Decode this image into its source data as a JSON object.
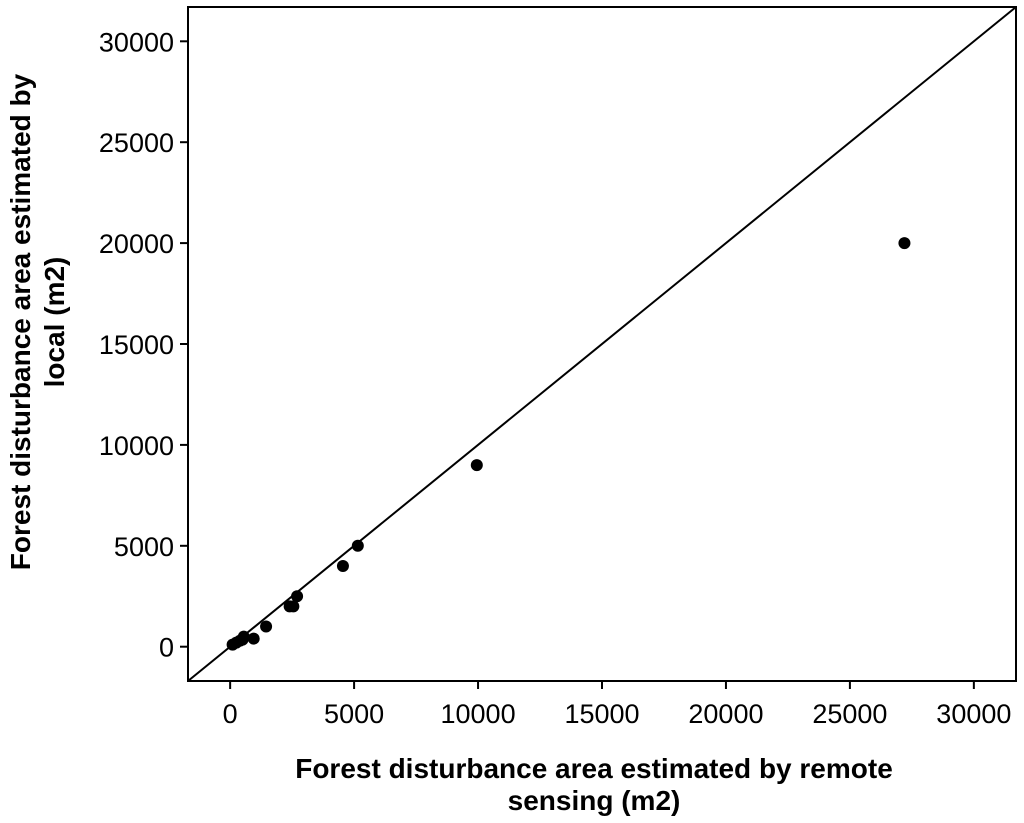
{
  "chart_data": {
    "type": "scatter",
    "title": "",
    "xlabel_lines": [
      "Forest disturbance area estimated by remote",
      "sensing (m2)"
    ],
    "ylabel_lines": [
      "Forest disturbance area estimated by",
      "local (m2)"
    ],
    "xlim": [
      -1700,
      31700
    ],
    "ylim": [
      -1700,
      31700
    ],
    "xticks": [
      0,
      5000,
      10000,
      15000,
      20000,
      25000,
      30000
    ],
    "yticks": [
      0,
      5000,
      10000,
      15000,
      20000,
      25000,
      30000
    ],
    "grid": false,
    "legend": "none",
    "reference_line": "y = x",
    "point_color": "#000000",
    "points": [
      {
        "x": 100,
        "y": 100
      },
      {
        "x": 250,
        "y": 200
      },
      {
        "x": 400,
        "y": 300
      },
      {
        "x": 500,
        "y": 350
      },
      {
        "x": 550,
        "y": 500
      },
      {
        "x": 950,
        "y": 400
      },
      {
        "x": 1450,
        "y": 1000
      },
      {
        "x": 2400,
        "y": 2000
      },
      {
        "x": 2550,
        "y": 2000
      },
      {
        "x": 2700,
        "y": 2500
      },
      {
        "x": 4550,
        "y": 4000
      },
      {
        "x": 5150,
        "y": 5000
      },
      {
        "x": 9950,
        "y": 9000
      },
      {
        "x": 27200,
        "y": 20000
      }
    ]
  }
}
